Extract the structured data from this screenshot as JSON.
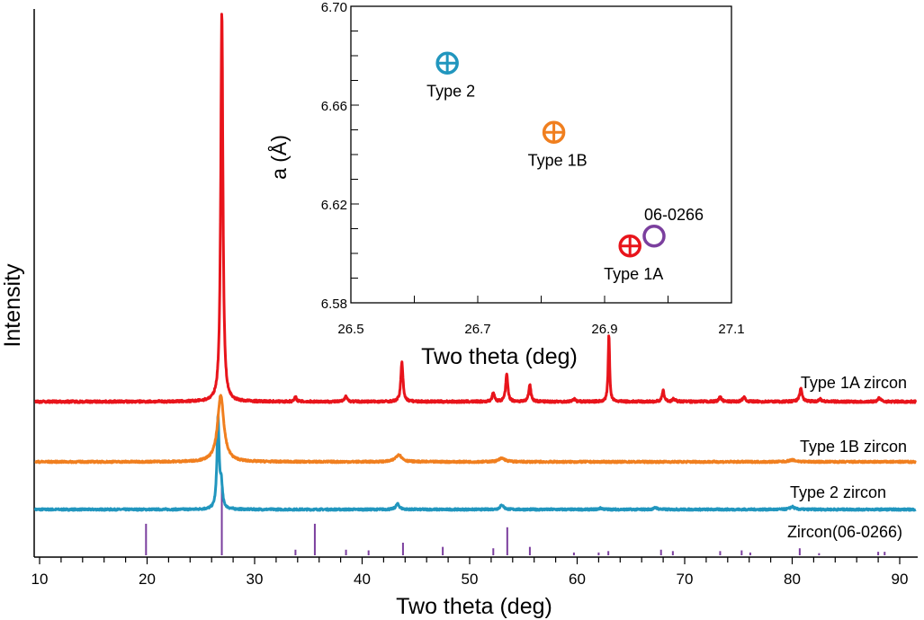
{
  "chart_data": [
    {
      "type": "line",
      "title": "",
      "xlabel": "Two theta (deg)",
      "ylabel": "Intensity",
      "xlim": [
        9.5,
        92
      ],
      "xticks": [
        10,
        20,
        30,
        40,
        50,
        60,
        70,
        80,
        90
      ],
      "minor_tick_step": 2,
      "grid": false,
      "series": [
        {
          "name": "Type 1A zircon",
          "color": "#e8141b",
          "offset": 173,
          "noise": 1.2,
          "peaks": [
            [
              26.95,
              435,
              0.12
            ],
            [
              43.7,
              44,
              0.12
            ],
            [
              53.45,
              30,
              0.12
            ],
            [
              55.6,
              19,
              0.12
            ],
            [
              52.2,
              10,
              0.12
            ],
            [
              62.95,
              75,
              0.08
            ],
            [
              38.5,
              7,
              0.12
            ],
            [
              33.8,
              5,
              0.12
            ],
            [
              68.0,
              12,
              0.12
            ],
            [
              80.8,
              14,
              0.15
            ],
            [
              73.3,
              5,
              0.15
            ],
            [
              75.5,
              5,
              0.15
            ],
            [
              88.1,
              4,
              0.15
            ],
            [
              59.7,
              3,
              0.15
            ],
            [
              82.6,
              3,
              0.15
            ],
            [
              69.0,
              3,
              0.15
            ]
          ]
        },
        {
          "name": "Type 1B zircon",
          "color": "#f07f1f",
          "offset": 106,
          "noise": 1.0,
          "peaks": [
            [
              26.85,
              74,
              0.35
            ],
            [
              43.4,
              8,
              0.35
            ],
            [
              53.0,
              4,
              0.35
            ],
            [
              80.0,
              2,
              0.4
            ]
          ]
        },
        {
          "name": "Type 2 zircon",
          "color": "#2196be",
          "offset": 53,
          "noise": 1.0,
          "peaks": [
            [
              26.6,
              102,
              0.12
            ],
            [
              26.9,
              25,
              0.12
            ],
            [
              43.3,
              6,
              0.2
            ],
            [
              53.0,
              5,
              0.2
            ],
            [
              80.0,
              3,
              0.25
            ],
            [
              67.3,
              2,
              0.2
            ],
            [
              62.2,
              1.5,
              0.2
            ]
          ]
        }
      ],
      "reference": {
        "name": "Zircon(06-0266)",
        "color": "#7b3f9e",
        "lines": [
          [
            19.9,
            45
          ],
          [
            26.95,
            100
          ],
          [
            33.8,
            8
          ],
          [
            35.6,
            45
          ],
          [
            38.5,
            8
          ],
          [
            40.6,
            7
          ],
          [
            43.8,
            18
          ],
          [
            47.5,
            12
          ],
          [
            52.2,
            10
          ],
          [
            53.5,
            40
          ],
          [
            55.6,
            12
          ],
          [
            59.7,
            4
          ],
          [
            62.0,
            4
          ],
          [
            62.9,
            6
          ],
          [
            67.8,
            8
          ],
          [
            68.9,
            6
          ],
          [
            73.3,
            6
          ],
          [
            75.3,
            7
          ],
          [
            76.1,
            4
          ],
          [
            80.7,
            10
          ],
          [
            82.5,
            3
          ],
          [
            88.0,
            5
          ],
          [
            88.6,
            5
          ]
        ]
      }
    },
    {
      "type": "scatter",
      "title": "",
      "xlabel": "Two theta (deg)",
      "ylabel": "a (Å)",
      "xlim": [
        26.5,
        27.1
      ],
      "ylim": [
        6.58,
        6.7
      ],
      "xticks": [
        "26.5",
        "26.7",
        "26.9",
        "27.1"
      ],
      "yticks": [
        "6.58",
        "6.62",
        "6.66",
        "6.70"
      ],
      "points": [
        {
          "label": "Type 2",
          "x": 26.652,
          "y": 6.677,
          "color": "#2196be",
          "marker": "circle-plus",
          "label_pos": "below"
        },
        {
          "label": "Type 1B",
          "x": 26.82,
          "y": 6.649,
          "color": "#f07f1f",
          "marker": "circle-plus",
          "label_pos": "below"
        },
        {
          "label": "Type 1A",
          "x": 26.94,
          "y": 6.603,
          "color": "#e8141b",
          "marker": "circle-plus",
          "label_pos": "below"
        },
        {
          "label": "06-0266",
          "x": 26.978,
          "y": 6.607,
          "color": "#7b3f9e",
          "marker": "circle",
          "label_pos": "above"
        }
      ]
    }
  ]
}
